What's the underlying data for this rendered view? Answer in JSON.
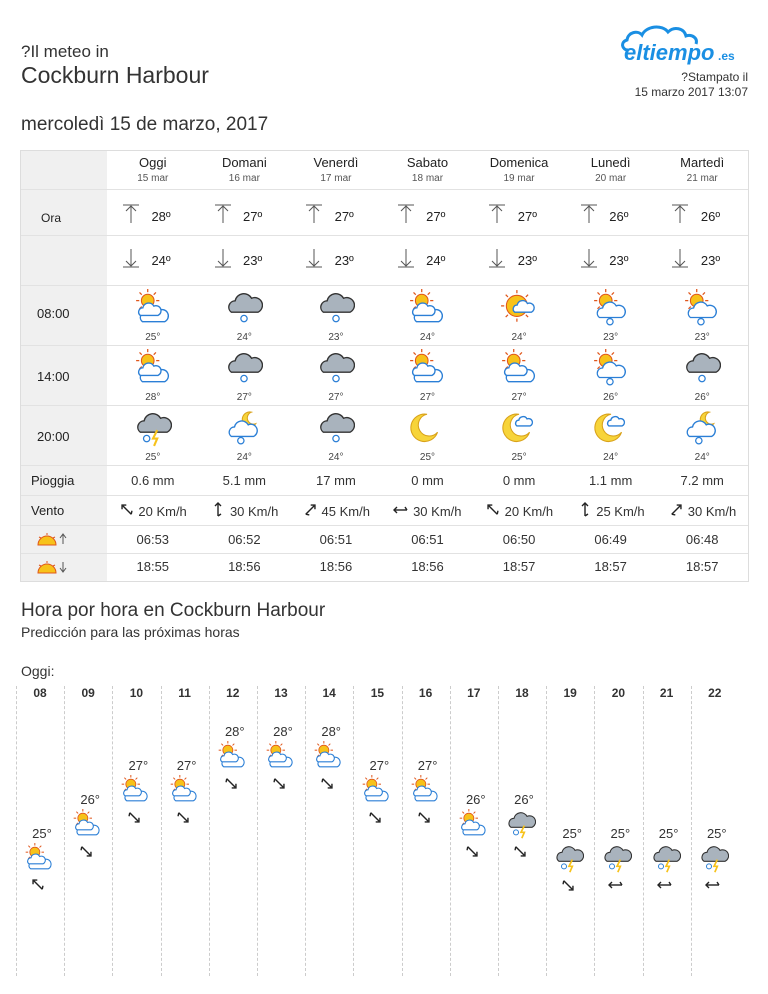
{
  "header": {
    "pre_title": "?Il meteo in",
    "city": "Cockburn Harbour",
    "logo_text": "eltiempo",
    "logo_suffix": ".es",
    "printed_label": "?Stampato il",
    "printed_date": "15 marzo 2017 13:07"
  },
  "date_title": "mercoledì 15 de marzo, 2017",
  "table": {
    "hour_label": "Ora",
    "hours": [
      "08:00",
      "14:00",
      "20:00"
    ],
    "rain_label": "Pioggia",
    "wind_label": "Vento",
    "days": [
      {
        "name": "Oggi",
        "date": "15 mar",
        "max": "28º",
        "min": "24º",
        "icons": [
          "partly-sunny-icon",
          "partly-sunny-icon",
          "storm-icon"
        ],
        "temps": [
          "25°",
          "28°",
          "25°"
        ],
        "rain": "0.6 mm",
        "wind": "20 Km/h",
        "wind_dir": "nw",
        "sunrise": "06:53",
        "sunset": "18:55"
      },
      {
        "name": "Domani",
        "date": "16 mar",
        "max": "27º",
        "min": "23º",
        "icons": [
          "rain-cloud-icon",
          "rain-cloud-icon",
          "moon-rain-icon"
        ],
        "temps": [
          "24°",
          "27°",
          "24°"
        ],
        "rain": "5.1 mm",
        "wind": "30 Km/h",
        "wind_dir": "n",
        "sunrise": "06:52",
        "sunset": "18:56"
      },
      {
        "name": "Venerdì",
        "date": "17 mar",
        "max": "27º",
        "min": "23º",
        "icons": [
          "rain-cloud-icon",
          "rain-cloud-icon",
          "rain-cloud-icon"
        ],
        "temps": [
          "23°",
          "27°",
          "24°"
        ],
        "rain": "17 mm",
        "wind": "45 Km/h",
        "wind_dir": "ne",
        "sunrise": "06:51",
        "sunset": "18:56"
      },
      {
        "name": "Sabato",
        "date": "18 mar",
        "max": "27º",
        "min": "24º",
        "icons": [
          "partly-sunny-icon",
          "partly-sunny-icon",
          "moon-icon"
        ],
        "temps": [
          "24°",
          "27°",
          "25°"
        ],
        "rain": "0 mm",
        "wind": "30 Km/h",
        "wind_dir": "w",
        "sunrise": "06:51",
        "sunset": "18:56"
      },
      {
        "name": "Domenica",
        "date": "19 mar",
        "max": "27º",
        "min": "23º",
        "icons": [
          "sun-cloud-icon",
          "partly-sunny-icon",
          "moon-cloud-icon"
        ],
        "temps": [
          "24°",
          "27°",
          "25°"
        ],
        "rain": "0 mm",
        "wind": "20 Km/h",
        "wind_dir": "nw",
        "sunrise": "06:50",
        "sunset": "18:57"
      },
      {
        "name": "Lunedì",
        "date": "20 mar",
        "max": "26º",
        "min": "23º",
        "icons": [
          "sun-rain-icon",
          "sun-rain-icon",
          "moon-cloud-icon"
        ],
        "temps": [
          "23°",
          "26°",
          "24°"
        ],
        "rain": "1.1 mm",
        "wind": "25 Km/h",
        "wind_dir": "n",
        "sunrise": "06:49",
        "sunset": "18:57"
      },
      {
        "name": "Martedì",
        "date": "21 mar",
        "max": "26º",
        "min": "23º",
        "icons": [
          "sun-rain-icon",
          "rain-cloud-icon",
          "moon-rain-icon"
        ],
        "temps": [
          "23°",
          "26°",
          "24°"
        ],
        "rain": "7.2 mm",
        "wind": "30 Km/h",
        "wind_dir": "ne",
        "sunrise": "06:48",
        "sunset": "18:57"
      }
    ]
  },
  "hourly": {
    "title": "Hora por hora en Cockburn Harbour",
    "subtitle": "Predicción para las próximas horas",
    "today_label": "Oggi:",
    "hours": [
      {
        "hour": "08",
        "temp": "25°",
        "icon": "partly-sunny-icon",
        "temp_value": 25
      },
      {
        "hour": "09",
        "temp": "26°",
        "icon": "partly-sunny-icon",
        "temp_value": 26
      },
      {
        "hour": "10",
        "temp": "27°",
        "icon": "partly-sunny-icon",
        "temp_value": 27
      },
      {
        "hour": "11",
        "temp": "27°",
        "icon": "partly-sunny-icon",
        "temp_value": 27
      },
      {
        "hour": "12",
        "temp": "28°",
        "icon": "partly-sunny-icon",
        "temp_value": 28
      },
      {
        "hour": "13",
        "temp": "28°",
        "icon": "partly-sunny-icon",
        "temp_value": 28
      },
      {
        "hour": "14",
        "temp": "28°",
        "icon": "partly-sunny-icon",
        "temp_value": 28
      },
      {
        "hour": "15",
        "temp": "27°",
        "icon": "partly-sunny-icon",
        "temp_value": 27
      },
      {
        "hour": "16",
        "temp": "27°",
        "icon": "partly-sunny-icon",
        "temp_value": 27
      },
      {
        "hour": "17",
        "temp": "26°",
        "icon": "partly-sunny-icon",
        "temp_value": 26
      },
      {
        "hour": "18",
        "temp": "26°",
        "icon": "storm-icon",
        "temp_value": 26
      },
      {
        "hour": "19",
        "temp": "25°",
        "icon": "storm-icon",
        "temp_value": 25
      },
      {
        "hour": "20",
        "temp": "25°",
        "icon": "storm-icon",
        "temp_value": 25
      },
      {
        "hour": "21",
        "temp": "25°",
        "icon": "storm-icon",
        "temp_value": 25
      },
      {
        "hour": "22",
        "temp": "25°",
        "icon": "storm-icon",
        "temp_value": 25
      }
    ]
  },
  "colors": {
    "accent": "#1a8fe3",
    "sun": "#f7c21a",
    "cloud_gray": "#a9b3bd",
    "cloud_stroke": "#2b7fd6"
  }
}
